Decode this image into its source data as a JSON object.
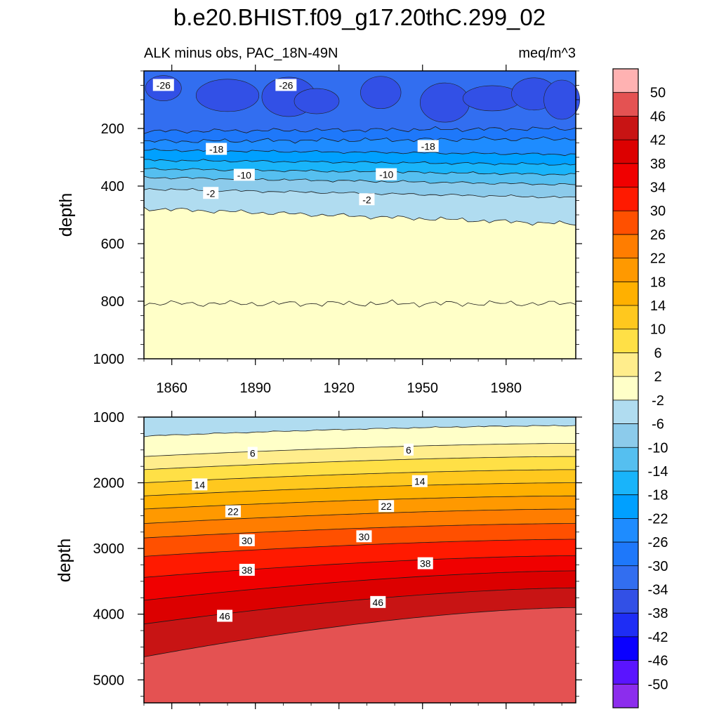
{
  "title": "b.e20.BHIST.f09_g17.20thC.299_02",
  "subtitle_left": "ALK minus obs, PAC_18N-49N",
  "subtitle_right": "meq/m^3",
  "chart_data": [
    {
      "type": "contour",
      "panel": "upper",
      "ylabel": "depth",
      "xlim": [
        1850,
        2005
      ],
      "ylim": [
        1000,
        0
      ],
      "x_tick_labels": [
        "1860",
        "1890",
        "1920",
        "1950",
        "1980"
      ],
      "x_ticks": [
        1860,
        1890,
        1920,
        1950,
        1980
      ],
      "y_tick_labels": [
        "200",
        "400",
        "600",
        "800",
        "1000"
      ],
      "y_ticks": [
        200,
        400,
        600,
        800,
        1000
      ],
      "contour_labels": [
        {
          "text": "-26",
          "x": 1857,
          "y": 50
        },
        {
          "text": "-26",
          "x": 1901,
          "y": 50
        },
        {
          "text": "-18",
          "x": 1876,
          "y": 272
        },
        {
          "text": "-18",
          "x": 1952,
          "y": 262
        },
        {
          "text": "-10",
          "x": 1886,
          "y": 362
        },
        {
          "text": "-10",
          "x": 1937,
          "y": 360
        },
        {
          "text": "-2",
          "x": 1874,
          "y": 425
        },
        {
          "text": "-2",
          "x": 1930,
          "y": 447
        }
      ],
      "level_depths_at_start_and_end": [
        {
          "level": -26,
          "start": 210,
          "end": 200
        },
        {
          "level": -22,
          "start": 245,
          "end": 235
        },
        {
          "level": -18,
          "start": 275,
          "end": 290
        },
        {
          "level": -14,
          "start": 310,
          "end": 325
        },
        {
          "level": -10,
          "start": 340,
          "end": 360
        },
        {
          "level": -6,
          "start": 370,
          "end": 395
        },
        {
          "level": -2,
          "start": 410,
          "end": 440
        },
        {
          "level": 2,
          "start": 478,
          "end": 532
        },
        {
          "level": 6,
          "start": 808,
          "end": 808
        }
      ]
    },
    {
      "type": "contour",
      "panel": "lower",
      "ylabel": "depth",
      "xlim": [
        1850,
        2005
      ],
      "ylim": [
        5350,
        1000
      ],
      "x_ticks": [
        1860,
        1890,
        1920,
        1950,
        1980
      ],
      "y_tick_labels": [
        "1000",
        "2000",
        "3000",
        "4000",
        "5000"
      ],
      "y_ticks": [
        1000,
        2000,
        3000,
        4000,
        5000
      ],
      "contour_labels": [
        {
          "text": "6",
          "x": 1889,
          "y": 1550
        },
        {
          "text": "6",
          "x": 1945,
          "y": 1500
        },
        {
          "text": "14",
          "x": 1870,
          "y": 2030
        },
        {
          "text": "14",
          "x": 1949,
          "y": 1980
        },
        {
          "text": "22",
          "x": 1882,
          "y": 2440
        },
        {
          "text": "22",
          "x": 1937,
          "y": 2360
        },
        {
          "text": "30",
          "x": 1887,
          "y": 2880
        },
        {
          "text": "30",
          "x": 1929,
          "y": 2820
        },
        {
          "text": "38",
          "x": 1887,
          "y": 3330
        },
        {
          "text": "38",
          "x": 1951,
          "y": 3230
        },
        {
          "text": "46",
          "x": 1879,
          "y": 4030
        },
        {
          "text": "46",
          "x": 1934,
          "y": 3820
        }
      ],
      "level_depths_at_start_and_end": [
        {
          "level": 2,
          "start": 1290,
          "end": 1130
        },
        {
          "level": 6,
          "start": 1600,
          "end": 1400
        },
        {
          "level": 10,
          "start": 1800,
          "end": 1600
        },
        {
          "level": 14,
          "start": 2000,
          "end": 1800
        },
        {
          "level": 18,
          "start": 2200,
          "end": 2000
        },
        {
          "level": 22,
          "start": 2400,
          "end": 2200
        },
        {
          "level": 26,
          "start": 2620,
          "end": 2400
        },
        {
          "level": 30,
          "start": 2840,
          "end": 2620
        },
        {
          "level": 34,
          "start": 3120,
          "end": 2860
        },
        {
          "level": 38,
          "start": 3440,
          "end": 3110
        },
        {
          "level": 42,
          "start": 3790,
          "end": 3340
        },
        {
          "level": 46,
          "start": 4150,
          "end": 3600
        },
        {
          "level": 50,
          "start": 4650,
          "end": 3900
        }
      ]
    }
  ],
  "colorbar": {
    "labels": [
      "50",
      "46",
      "42",
      "38",
      "34",
      "30",
      "26",
      "22",
      "18",
      "14",
      "10",
      "6",
      "2",
      "-2",
      "-6",
      "-10",
      "-14",
      "-18",
      "-22",
      "-26",
      "-30",
      "-34",
      "-38",
      "-42",
      "-46",
      "-50"
    ],
    "colors": [
      "#ffb2b2",
      "#e45252",
      "#c81414",
      "#dc0000",
      "#f00000",
      "#ff1a00",
      "#ff5000",
      "#ff7d00",
      "#ff9900",
      "#ffb000",
      "#ffc81e",
      "#ffe046",
      "#ffed8c",
      "#ffffc8",
      "#b0dcf0",
      "#8ccbeb",
      "#55bff0",
      "#19b4fa",
      "#00a0ff",
      "#1e8cff",
      "#1e78fa",
      "#326ef0",
      "#3250e6",
      "#1e2df5",
      "#0a00ff",
      "#5a14ff",
      "#8c2ded"
    ]
  }
}
